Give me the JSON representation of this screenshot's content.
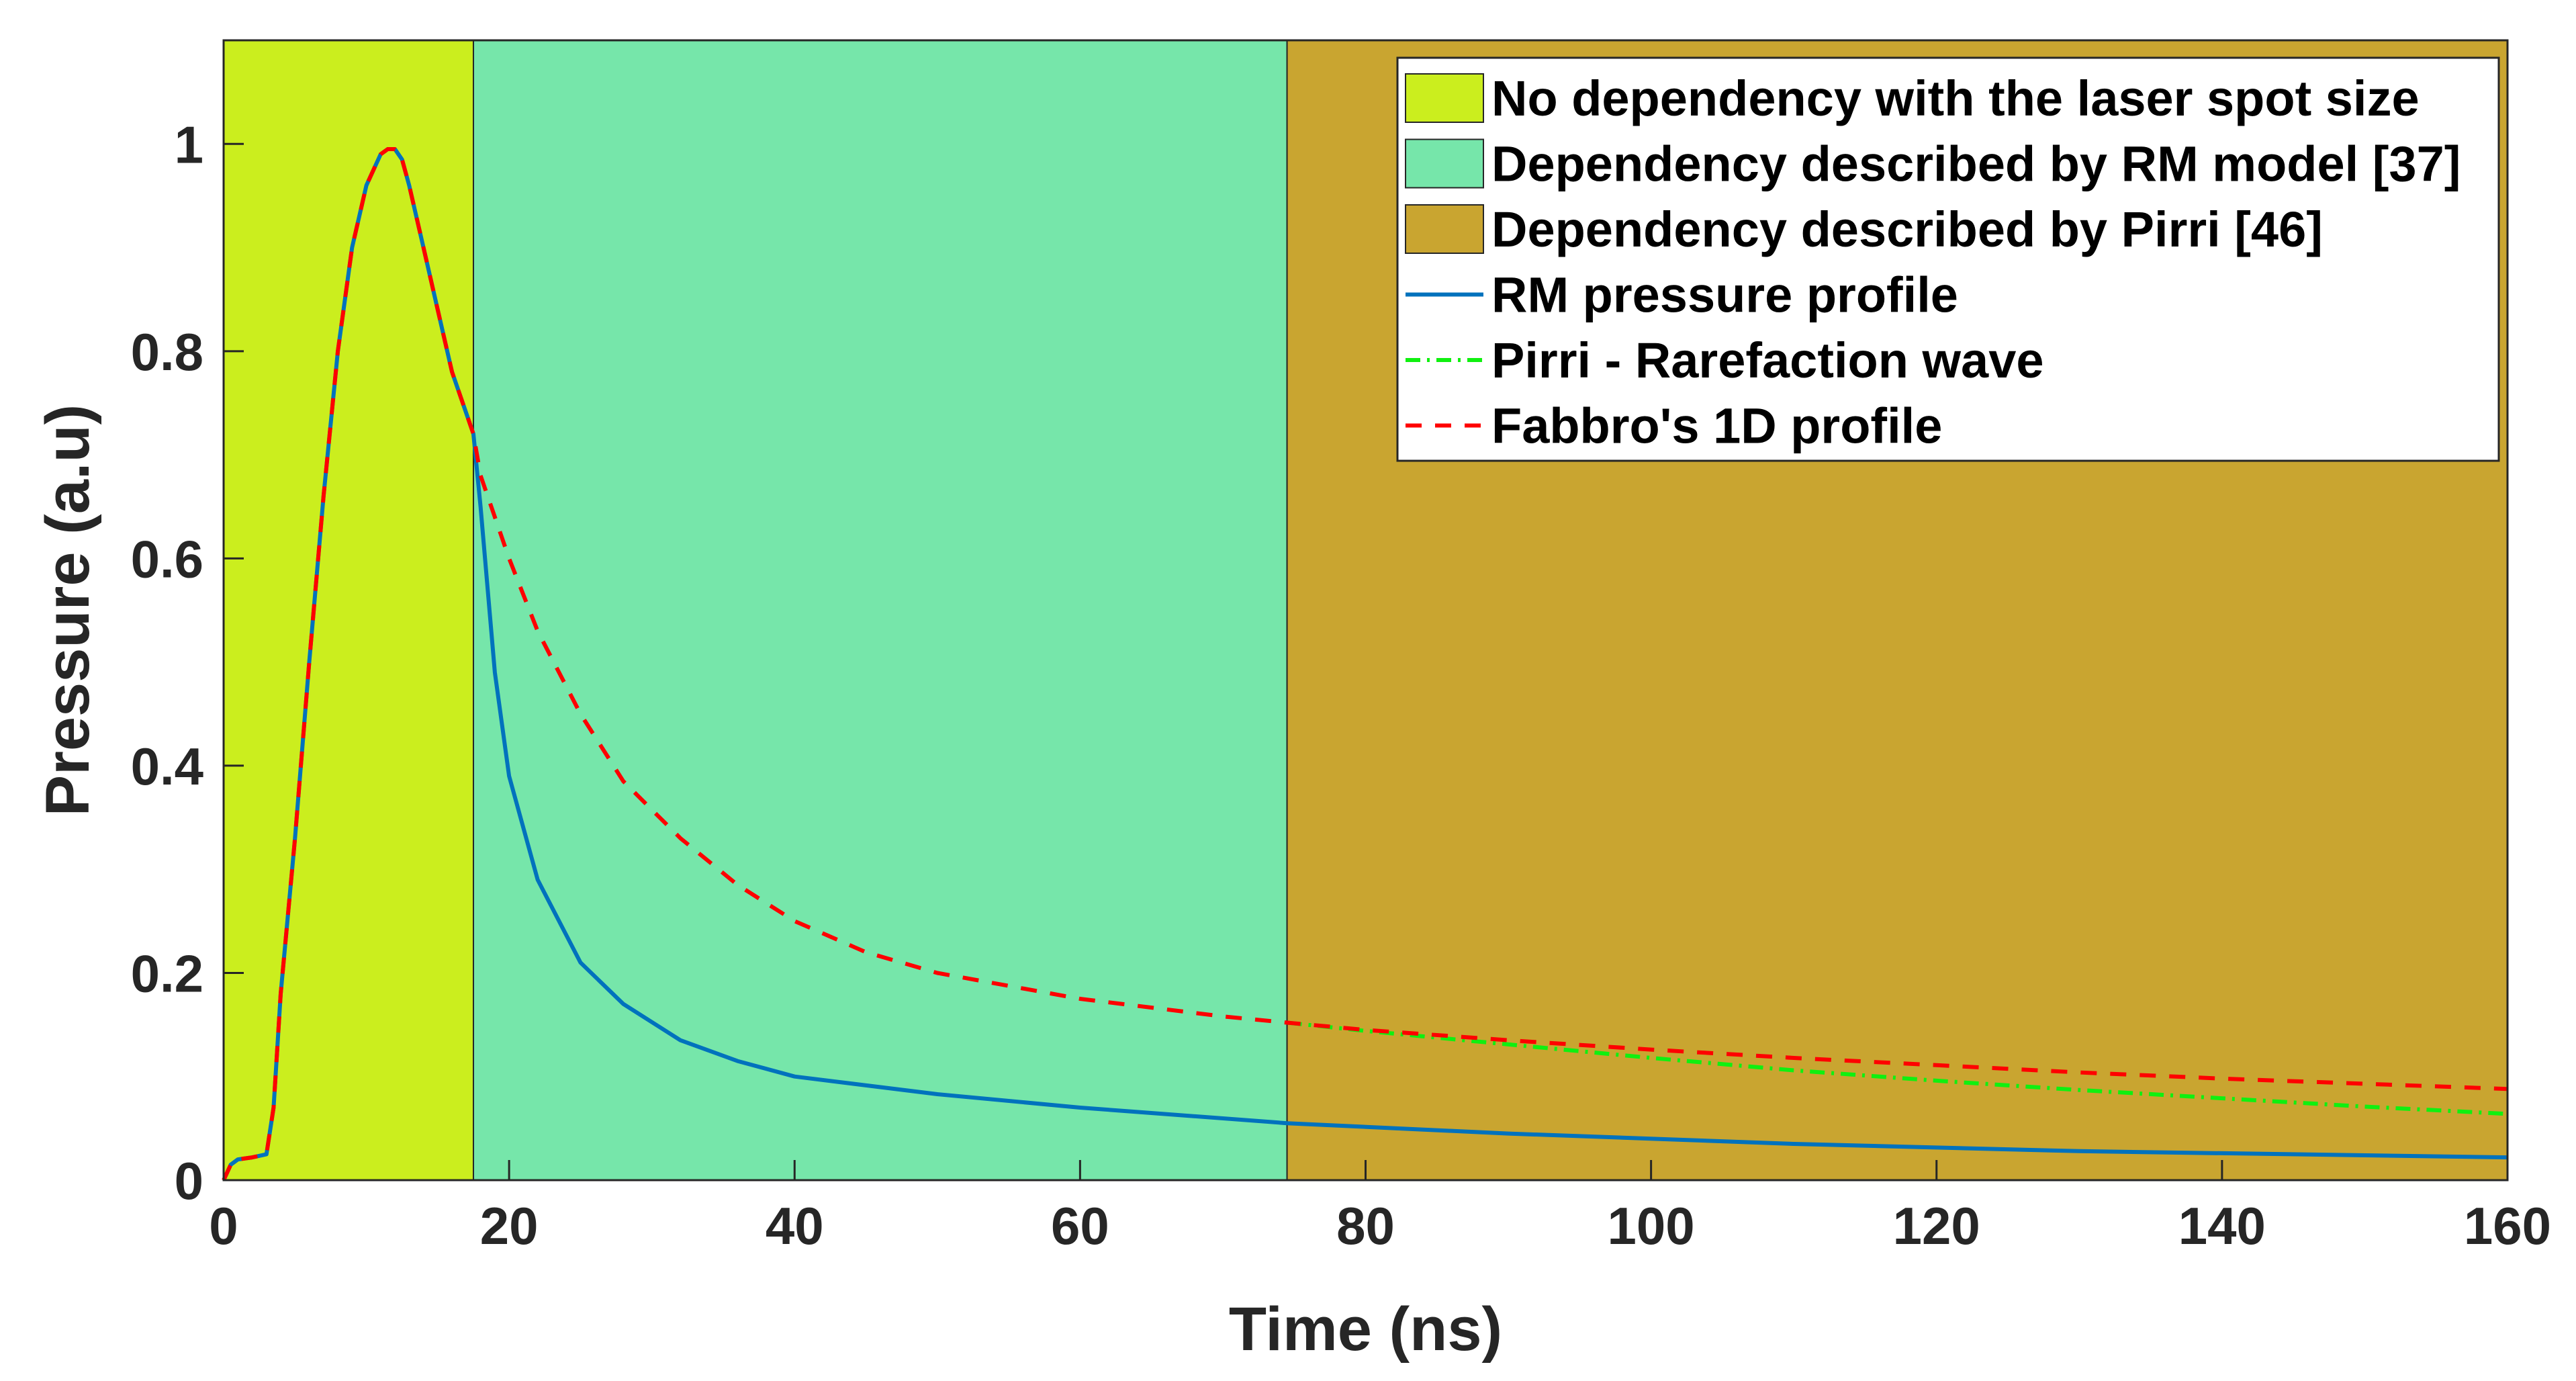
{
  "chart_data": {
    "type": "line",
    "xlabel": "Time (ns)",
    "ylabel": "Pressure (a.u)",
    "xlim": [
      0,
      160
    ],
    "ylim": [
      0,
      1.1
    ],
    "xticks": [
      0,
      20,
      40,
      60,
      80,
      100,
      120,
      140,
      160
    ],
    "yticks": [
      0,
      0.2,
      0.4,
      0.6,
      0.8,
      1
    ],
    "ytick_labels": [
      "0",
      "0.2",
      "0.4",
      "0.6",
      "0.8",
      "1"
    ],
    "legend_location": "top-right",
    "regions": [
      {
        "name": "No dependency with the laser spot size",
        "x_start": 0,
        "x_end": 17.5,
        "color": "#CBEE1E"
      },
      {
        "name": "Dependency described by RM model [37]",
        "x_start": 17.5,
        "x_end": 74.5,
        "color": "#76E6AA"
      },
      {
        "name": "Dependency described by Pirri [46]",
        "x_start": 74.5,
        "x_end": 160,
        "color": "#C9A530"
      }
    ],
    "series": [
      {
        "name": "RM pressure profile",
        "color": "#0072BD",
        "style": "solid",
        "x": [
          0,
          0.5,
          1,
          2,
          3,
          3.5,
          4,
          5,
          6,
          7,
          8,
          9,
          10,
          11,
          11.5,
          12,
          12.5,
          13,
          14,
          15,
          16,
          17,
          17.5,
          18,
          19,
          20,
          22,
          25,
          28,
          32,
          36,
          40,
          50,
          60,
          74.5,
          90,
          110,
          130,
          160
        ],
        "y": [
          0,
          0.015,
          0.02,
          0.022,
          0.025,
          0.07,
          0.18,
          0.33,
          0.5,
          0.66,
          0.8,
          0.9,
          0.96,
          0.99,
          0.995,
          0.995,
          0.985,
          0.96,
          0.9,
          0.84,
          0.78,
          0.74,
          0.72,
          0.65,
          0.49,
          0.39,
          0.29,
          0.21,
          0.17,
          0.135,
          0.115,
          0.1,
          0.083,
          0.07,
          0.055,
          0.045,
          0.035,
          0.028,
          0.022
        ]
      },
      {
        "name": "Pirri - Rarefaction wave",
        "color": "#10F010",
        "style": "dash-dot",
        "x": [
          74.5,
          80,
          90,
          100,
          110,
          120,
          130,
          140,
          150,
          160
        ],
        "y": [
          0.152,
          0.144,
          0.131,
          0.118,
          0.106,
          0.096,
          0.087,
          0.079,
          0.071,
          0.064
        ]
      },
      {
        "name": "Fabbro's 1D profile",
        "color": "#FF0000",
        "style": "dashed",
        "x": [
          0,
          0.5,
          1,
          2,
          3,
          3.5,
          4,
          5,
          6,
          7,
          8,
          9,
          10,
          11,
          11.5,
          12,
          12.5,
          13,
          14,
          15,
          16,
          17,
          17.5,
          18,
          20,
          22,
          25,
          28,
          32,
          36,
          40,
          45,
          50,
          60,
          70,
          74.5,
          80,
          90,
          100,
          110,
          120,
          130,
          140,
          150,
          160
        ],
        "y": [
          0,
          0.015,
          0.02,
          0.022,
          0.025,
          0.07,
          0.18,
          0.33,
          0.5,
          0.66,
          0.8,
          0.9,
          0.96,
          0.99,
          0.995,
          0.995,
          0.985,
          0.96,
          0.9,
          0.84,
          0.78,
          0.74,
          0.72,
          0.68,
          0.6,
          0.53,
          0.45,
          0.385,
          0.33,
          0.285,
          0.25,
          0.22,
          0.2,
          0.175,
          0.158,
          0.152,
          0.145,
          0.135,
          0.126,
          0.118,
          0.111,
          0.104,
          0.098,
          0.093,
          0.088
        ]
      }
    ]
  }
}
